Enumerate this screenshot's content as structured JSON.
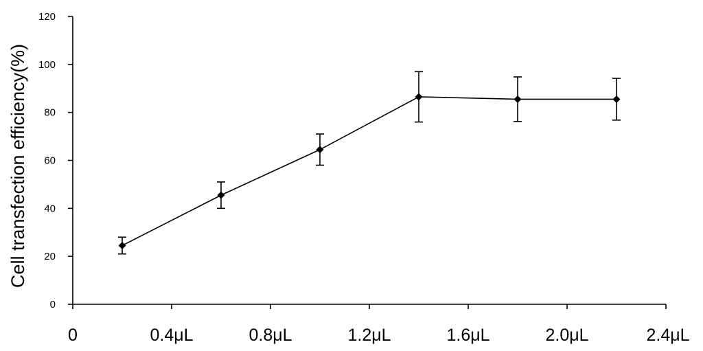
{
  "chart_data": {
    "type": "line",
    "title": "",
    "xlabel": "",
    "ylabel": "Cell transfection efficiency(%)",
    "x_tick_labels": [
      "0",
      "0.4μL",
      "0.8μL",
      "1.2μL",
      "1.6μL",
      "2.0μL",
      "2.4μL"
    ],
    "x_ticks": [
      0,
      0.4,
      0.8,
      1.2,
      1.6,
      2.0,
      2.4
    ],
    "y_ticks": [
      0,
      20,
      40,
      60,
      80,
      100,
      120
    ],
    "xlim": [
      0,
      2.4
    ],
    "ylim": [
      0,
      120
    ],
    "grid": false,
    "legend": "none",
    "series": [
      {
        "x": [
          0.2,
          0.6,
          1.0,
          1.4,
          1.8,
          2.2
        ],
        "y": [
          24.5,
          45.5,
          64.5,
          86.5,
          85.5,
          85.5
        ],
        "error": [
          3.5,
          5.5,
          6.5,
          10.5,
          9.3,
          8.7
        ],
        "color": "#000000",
        "marker": "diamond"
      }
    ]
  }
}
